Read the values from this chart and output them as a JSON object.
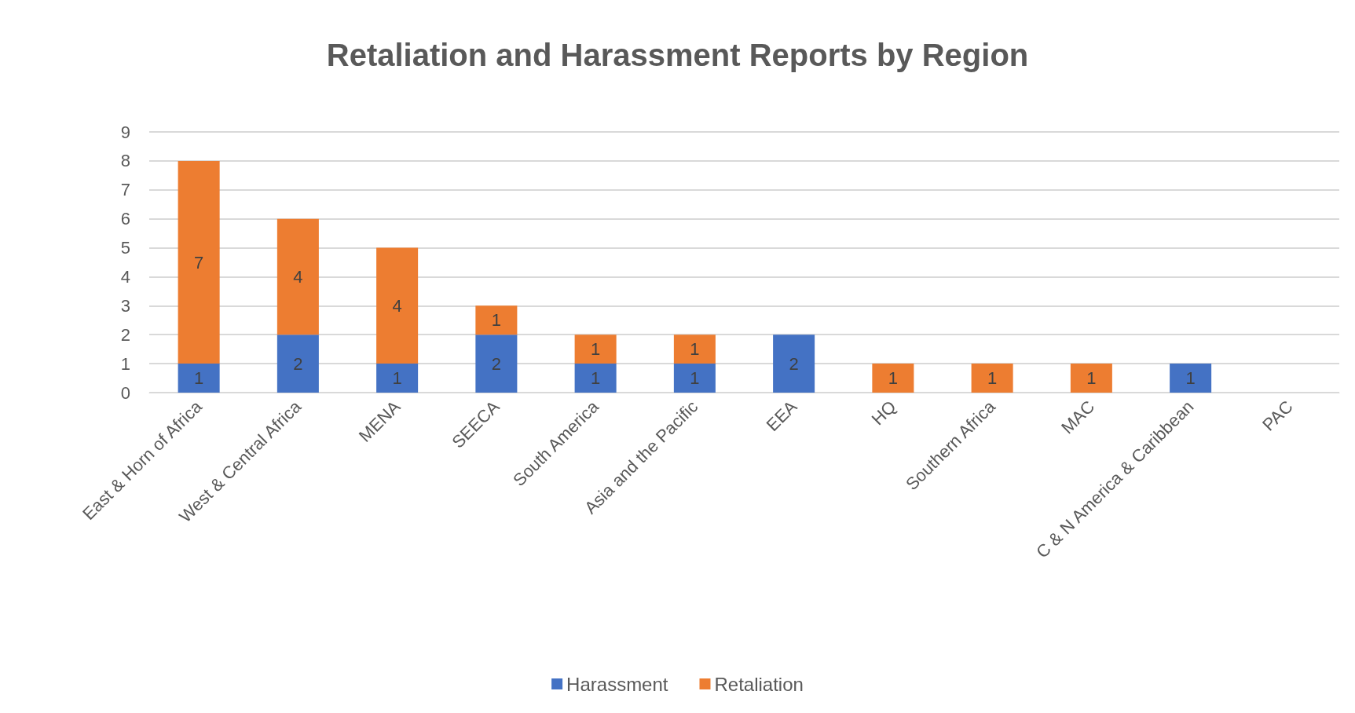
{
  "chart_data": {
    "type": "bar",
    "title": "Retaliation and Harassment Reports by Region",
    "categories": [
      "East & Horn of Africa",
      "West & Central Africa",
      "MENA",
      "SEECA",
      "South America",
      "Asia and the Pacific",
      "EEA",
      "HQ",
      "Southern Africa",
      "MAC",
      "C & N America & Caribbean",
      "PAC"
    ],
    "series": [
      {
        "name": "Harassment",
        "color": "#4472c4",
        "values": [
          1,
          2,
          1,
          2,
          1,
          1,
          2,
          null,
          null,
          null,
          1,
          null
        ]
      },
      {
        "name": "Retaliation",
        "color": "#ed7d31",
        "values": [
          7,
          4,
          4,
          1,
          1,
          1,
          null,
          1,
          1,
          1,
          null,
          null
        ]
      }
    ],
    "stacked": true,
    "data_labels": true,
    "ylim": [
      0,
      9
    ],
    "yticks": [
      0,
      1,
      2,
      3,
      4,
      5,
      6,
      7,
      8,
      9
    ],
    "grid": "y",
    "legend": "bottom"
  }
}
